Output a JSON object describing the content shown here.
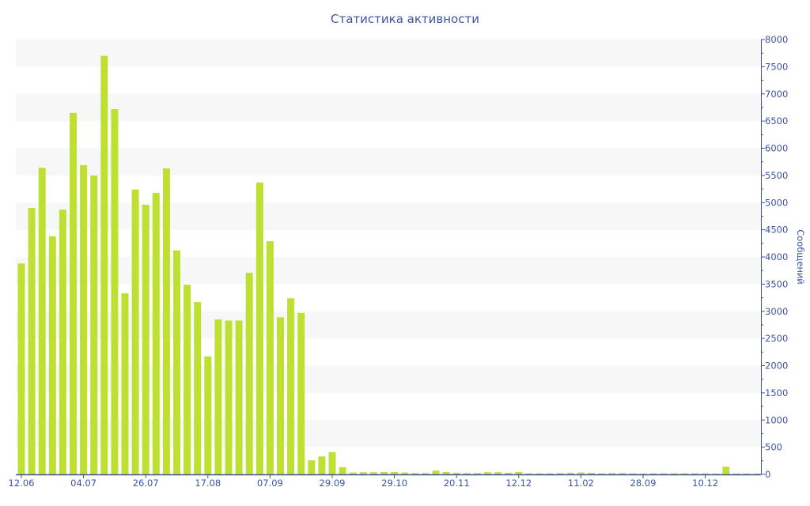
{
  "chart_data": {
    "type": "bar",
    "title": "Статистика активности",
    "ylabel": "Сообщений",
    "xlabel": "",
    "ylim": [
      0,
      8000
    ],
    "y_ticks": [
      0,
      500,
      1000,
      1500,
      2000,
      2500,
      3000,
      3500,
      4000,
      4500,
      5000,
      5500,
      6000,
      6500,
      7000,
      7500,
      8000
    ],
    "y_axis_side": "right",
    "grid": "alternating horizontal bands",
    "x_tick_labels": [
      {
        "index": 0,
        "label": "12.06"
      },
      {
        "index": 6,
        "label": "04.07"
      },
      {
        "index": 12,
        "label": "26.07"
      },
      {
        "index": 18,
        "label": "17.08"
      },
      {
        "index": 24,
        "label": "07.09"
      },
      {
        "index": 30,
        "label": "29.09"
      },
      {
        "index": 36,
        "label": "29.10"
      },
      {
        "index": 42,
        "label": "20.11"
      },
      {
        "index": 48,
        "label": "12.12"
      },
      {
        "index": 54,
        "label": "11.02"
      },
      {
        "index": 60,
        "label": "28.09"
      },
      {
        "index": 66,
        "label": "10.12"
      }
    ],
    "values": [
      3880,
      4900,
      5640,
      4380,
      4870,
      6650,
      5690,
      5500,
      7700,
      6720,
      3330,
      5240,
      4960,
      5180,
      5630,
      4120,
      3490,
      3170,
      2170,
      2850,
      2830,
      2830,
      3710,
      5370,
      4290,
      2890,
      3240,
      2970,
      260,
      330,
      410,
      130,
      35,
      40,
      40,
      45,
      45,
      35,
      25,
      25,
      70,
      45,
      30,
      25,
      25,
      40,
      40,
      30,
      45,
      20,
      20,
      20,
      25,
      30,
      35,
      30,
      20,
      25,
      25,
      20,
      15,
      20,
      20,
      20,
      20,
      20,
      20,
      15,
      140,
      15,
      15,
      15
    ],
    "colors": {
      "bar": "#bde032",
      "axis": "#3e54a3",
      "band": "#f7f7f7"
    }
  }
}
